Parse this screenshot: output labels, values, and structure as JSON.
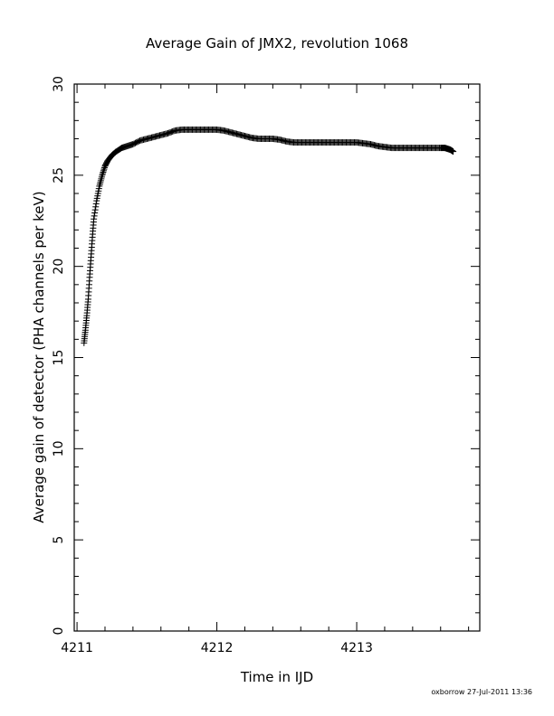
{
  "chart_data": {
    "type": "scatter",
    "title": "Average Gain of JMX2, revolution 1068",
    "xlabel": "Time in IJD",
    "ylabel": "Average gain of detector (PHA channels per keV)",
    "xlim": [
      4210.98,
      4213.88
    ],
    "ylim": [
      0,
      30
    ],
    "xticks": [
      4211,
      4212,
      4213
    ],
    "yticks": [
      0,
      5,
      10,
      15,
      20,
      25,
      30
    ],
    "grid": false,
    "marker": "plus",
    "color": "#000000",
    "series": [
      {
        "x": [
          4211.05,
          4211.06,
          4211.07,
          4211.08,
          4211.09,
          4211.1,
          4211.11,
          4211.12,
          4211.14,
          4211.16,
          4211.18,
          4211.2,
          4211.22,
          4211.25,
          4211.28,
          4211.32,
          4211.36,
          4211.4,
          4211.45,
          4211.5,
          4211.55,
          4211.6,
          4211.65,
          4211.7,
          4211.75,
          4211.8,
          4211.85,
          4211.9,
          4211.95,
          4212.0,
          4212.05,
          4212.1,
          4212.15,
          4212.2,
          4212.25,
          4212.3,
          4212.35,
          4212.4,
          4212.45,
          4212.5,
          4212.55,
          4212.6,
          4212.65,
          4212.7,
          4212.75,
          4212.8,
          4212.85,
          4212.9,
          4212.95,
          4213.0,
          4213.05,
          4213.1,
          4213.15,
          4213.2,
          4213.25,
          4213.3,
          4213.35,
          4213.4,
          4213.45,
          4213.5,
          4213.55,
          4213.6,
          4213.63,
          4213.65,
          4213.67,
          4213.69
        ],
        "y": [
          15.8,
          16.5,
          17.3,
          18.2,
          19.4,
          20.5,
          21.6,
          22.6,
          23.6,
          24.4,
          25.0,
          25.5,
          25.8,
          26.1,
          26.3,
          26.5,
          26.6,
          26.7,
          26.9,
          27.0,
          27.1,
          27.2,
          27.3,
          27.45,
          27.5,
          27.5,
          27.5,
          27.5,
          27.5,
          27.5,
          27.45,
          27.35,
          27.25,
          27.15,
          27.05,
          27.0,
          27.0,
          27.0,
          26.95,
          26.85,
          26.8,
          26.8,
          26.8,
          26.8,
          26.8,
          26.8,
          26.8,
          26.8,
          26.8,
          26.8,
          26.75,
          26.7,
          26.6,
          26.55,
          26.5,
          26.5,
          26.5,
          26.5,
          26.5,
          26.5,
          26.5,
          26.5,
          26.5,
          26.45,
          26.4,
          26.3
        ]
      }
    ]
  },
  "footer": "oxborrow 27-Jul-2011 13:36"
}
